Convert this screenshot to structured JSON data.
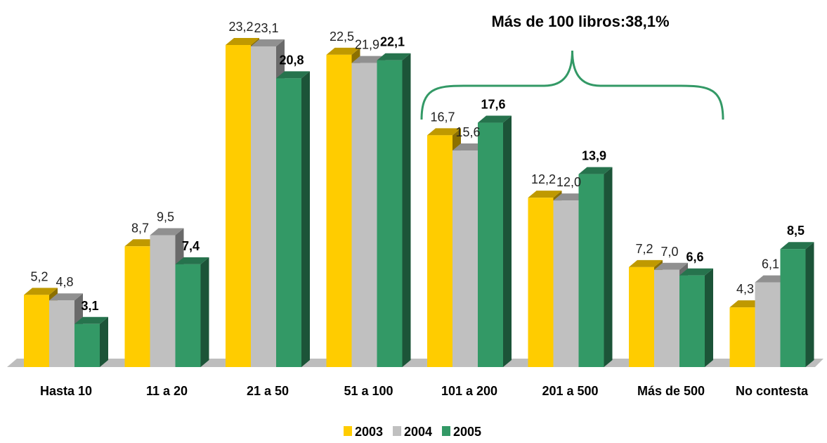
{
  "chart_data": {
    "type": "bar",
    "categories": [
      "Hasta 10",
      "11 a 20",
      "21 a 50",
      "51 a 100",
      "101 a 200",
      "201 a 500",
      "Más de 500",
      "No contesta"
    ],
    "series": [
      {
        "name": "2003",
        "color": "#FFCC00",
        "values": [
          5.2,
          8.7,
          23.2,
          22.5,
          16.7,
          12.2,
          7.2,
          4.3
        ],
        "labels": [
          "5,2",
          "8,7",
          "23,2",
          "22,5",
          "16,7",
          "12,2",
          "7,2",
          "4,3"
        ],
        "label_bold": false
      },
      {
        "name": "2004",
        "color": "#C0C0C0",
        "values": [
          4.8,
          9.5,
          23.1,
          21.9,
          15.6,
          12.0,
          7.0,
          6.1
        ],
        "labels": [
          "4,8",
          "9,5",
          "23,1",
          "21,9",
          "15,6",
          "12,0",
          "7,0",
          "6,1"
        ],
        "label_bold": false
      },
      {
        "name": "2005",
        "color": "#339966",
        "values": [
          3.1,
          7.4,
          20.8,
          22.1,
          17.6,
          13.9,
          6.6,
          8.5
        ],
        "labels": [
          "3,1",
          "7,4",
          "20,8",
          "22,1",
          "17,6",
          "13,9",
          "6,6",
          "8,5"
        ],
        "label_bold": true
      }
    ],
    "ylim": [
      0,
      23.2
    ],
    "annotation": {
      "text": "Más de 100 libros:38,1%",
      "spans": [
        "101 a 200",
        "201 a 500",
        "Más de 500"
      ],
      "color": "#339966"
    },
    "legend_position": "bottom",
    "grid": false
  }
}
